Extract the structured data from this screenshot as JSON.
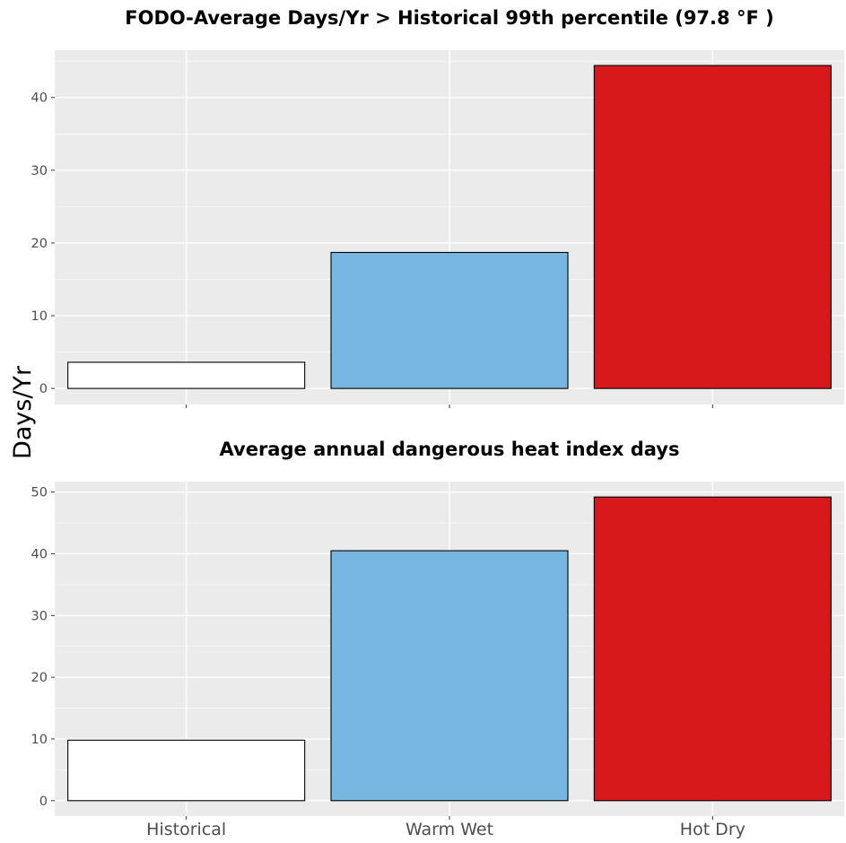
{
  "chart_data": [
    {
      "type": "bar",
      "title": "FODO-Average Days/Yr > Historical 99th percentile (97.8 °F )",
      "categories": [
        "Historical",
        "Warm Wet",
        "Hot Dry"
      ],
      "values": [
        3.6,
        18.7,
        44.4
      ],
      "colors": [
        "#ffffff",
        "#76b6e0",
        "#d7191c"
      ],
      "ylim": [
        -2.2,
        46.5
      ],
      "yticks": [
        0,
        10,
        20,
        30,
        40
      ],
      "ytick_labels": [
        "0",
        "10",
        "20",
        "30",
        "40"
      ],
      "grid": true,
      "show_x_tick_labels": false
    },
    {
      "type": "bar",
      "title": "Average annual dangerous heat index days",
      "categories": [
        "Historical",
        "Warm Wet",
        "Hot Dry"
      ],
      "values": [
        9.8,
        40.5,
        49.2
      ],
      "colors": [
        "#ffffff",
        "#76b6e0",
        "#d7191c"
      ],
      "ylim": [
        -2.5,
        51.7
      ],
      "yticks": [
        0,
        10,
        20,
        30,
        40,
        50
      ],
      "ytick_labels": [
        "0",
        "10",
        "20",
        "30",
        "40",
        "50"
      ],
      "grid": true,
      "show_x_tick_labels": true
    }
  ],
  "shared_ylabel": "Days/Yr",
  "colors": {
    "panel_background": "#ebebeb",
    "grid": "#ffffff",
    "bar_outline": "#000000",
    "tick_text": "#4d4d4d"
  }
}
